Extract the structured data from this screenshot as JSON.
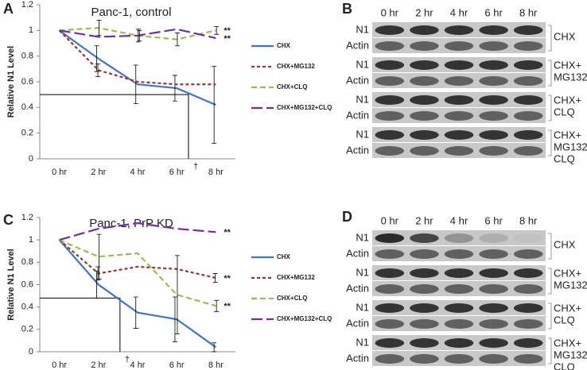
{
  "chart_data": [
    {
      "type": "line",
      "panel_label": "A",
      "title": "Panc-1, control",
      "y_label": "Relative N1 Level",
      "categories": [
        "0 hr",
        "2 hr",
        "4 hr",
        "6 hr",
        "8 hr"
      ],
      "ylim": [
        0,
        1.2
      ],
      "yticks": [
        0,
        0.2,
        0.4,
        0.6,
        0.8,
        1,
        1.2
      ],
      "series": [
        {
          "name": "CHX",
          "color": "#4472c4",
          "dash": "solid",
          "values": [
            1,
            0.78,
            0.58,
            0.55,
            0.42
          ],
          "errors": [
            null,
            0.1,
            0.15,
            0.1,
            0.3
          ]
        },
        {
          "name": "CHX+MG132",
          "color": "#953735",
          "dash": "dot",
          "values": [
            1,
            0.69,
            0.6,
            0.58,
            0.58
          ],
          "errors": [
            null,
            0.05,
            null,
            null,
            null
          ]
        },
        {
          "name": "CHX+CLQ",
          "color": "#9bbb59",
          "dash": "dash",
          "values": [
            1,
            1.02,
            0.96,
            0.93,
            1.0
          ],
          "errors": [
            null,
            0.06,
            0.05,
            0.05,
            0.03
          ],
          "annotation": "**"
        },
        {
          "name": "CHX+MG132+CLQ",
          "color": "#7030a0",
          "dash": "longdash",
          "values": [
            1,
            0.95,
            0.96,
            1.01,
            0.94
          ],
          "errors": [
            null,
            null,
            0.04,
            null,
            null
          ],
          "annotation": "**"
        }
      ],
      "half_life": {
        "x": 3.3,
        "y": 0.5,
        "label": "†"
      }
    },
    {
      "type": "line",
      "panel_label": "C",
      "title": "Panc-1, PrP KD",
      "y_label": "Relative N1 Level",
      "categories": [
        "0 hr",
        "2 hr",
        "4 hr",
        "6 hr",
        "8 hr"
      ],
      "ylim": [
        0,
        1.2
      ],
      "yticks": [
        0,
        0.2,
        0.4,
        0.6,
        0.8,
        1,
        1.2
      ],
      "series": [
        {
          "name": "CHX",
          "color": "#4472c4",
          "dash": "solid",
          "values": [
            1,
            0.6,
            0.35,
            0.29,
            0.04
          ],
          "errors": [
            null,
            0.12,
            0.14,
            0.2,
            0.04
          ]
        },
        {
          "name": "CHX+MG132",
          "color": "#953735",
          "dash": "dot",
          "values": [
            1,
            0.7,
            0.76,
            0.74,
            0.66
          ],
          "errors": [
            null,
            0.06,
            null,
            null,
            0.04
          ],
          "annotation": "**"
        },
        {
          "name": "CHX+CLQ",
          "color": "#9bbb59",
          "dash": "dash",
          "values": [
            1,
            0.85,
            0.88,
            0.51,
            0.41
          ],
          "errors": [
            null,
            0.2,
            null,
            0.35,
            0.05
          ],
          "annotation": "**"
        },
        {
          "name": "CHX+MG132+CLQ",
          "color": "#7030a0",
          "dash": "longdash",
          "values": [
            1,
            1.1,
            1.15,
            1.1,
            1.07
          ],
          "errors": [
            null,
            null,
            null,
            null,
            null
          ],
          "annotation": "**"
        }
      ],
      "half_life": {
        "x": 1.55,
        "y": 0.48,
        "label": "†"
      }
    }
  ],
  "blots": [
    {
      "panel_label": "B",
      "lanes": [
        "0 hr",
        "2 hr",
        "4 hr",
        "6 hr",
        "8 hr"
      ],
      "groups": [
        {
          "rows": [
            "N1",
            "Actin"
          ],
          "label": [
            "CHX"
          ]
        },
        {
          "rows": [
            "N1",
            "Actin"
          ],
          "label": [
            "CHX+",
            "MG132"
          ]
        },
        {
          "rows": [
            "N1",
            "Actin"
          ],
          "label": [
            "CHX+",
            "CLQ"
          ]
        },
        {
          "rows": [
            "N1",
            "Actin"
          ],
          "label": [
            "CHX+",
            "MG132",
            "CLQ"
          ]
        }
      ]
    },
    {
      "panel_label": "D",
      "lanes": [
        "0 hr",
        "2 hr",
        "4 hr",
        "6 hr",
        "8 hr"
      ],
      "groups": [
        {
          "rows": [
            "N1",
            "Actin"
          ],
          "label": [
            "CHX"
          ]
        },
        {
          "rows": [
            "N1",
            "Actin"
          ],
          "label": [
            "CHX+",
            "MG132"
          ]
        },
        {
          "rows": [
            "N1",
            "Actin"
          ],
          "label": [
            "CHX+",
            "CLQ"
          ]
        },
        {
          "rows": [
            "N1",
            "Actin"
          ],
          "label": [
            "CHX+",
            "MG132",
            "CLQ"
          ]
        }
      ]
    }
  ]
}
